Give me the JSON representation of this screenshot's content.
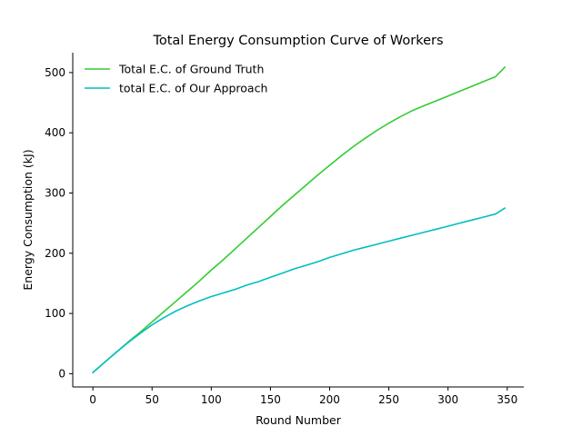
{
  "chart_data": {
    "type": "line",
    "title": "Total Energy Consumption Curve of Workers",
    "xlabel": "Round Number",
    "ylabel": "Energy Consumption (kJ)",
    "xlim": [
      -17,
      364
    ],
    "ylim": [
      -22,
      533
    ],
    "xticks": [
      0,
      50,
      100,
      150,
      200,
      250,
      300,
      350
    ],
    "yticks": [
      0,
      100,
      200,
      300,
      400,
      500
    ],
    "grid": false,
    "legend_position": "top-left",
    "series": [
      {
        "name": "Total E.C. of Ground Truth",
        "color": "#33cc33",
        "x": [
          0,
          10,
          20,
          30,
          40,
          50,
          60,
          70,
          80,
          90,
          100,
          110,
          120,
          130,
          140,
          150,
          160,
          170,
          180,
          190,
          200,
          210,
          220,
          230,
          240,
          250,
          260,
          270,
          280,
          290,
          300,
          310,
          320,
          330,
          340,
          348
        ],
        "y": [
          2,
          19,
          36,
          53,
          69,
          86,
          103,
          120,
          137,
          154,
          172,
          189,
          207,
          225,
          243,
          261,
          279,
          296,
          313,
          330,
          346,
          362,
          377,
          391,
          404,
          416,
          427,
          437,
          445,
          453,
          461,
          469,
          477,
          485,
          493,
          509
        ]
      },
      {
        "name": "total E.C. of Our Approach",
        "color": "#00bfbf",
        "x": [
          0,
          10,
          20,
          30,
          40,
          50,
          60,
          70,
          80,
          90,
          100,
          110,
          120,
          130,
          140,
          150,
          160,
          170,
          180,
          190,
          200,
          210,
          220,
          230,
          240,
          250,
          260,
          270,
          280,
          290,
          300,
          310,
          320,
          330,
          340,
          348
        ],
        "y": [
          2,
          19,
          36,
          52,
          67,
          81,
          93,
          104,
          113,
          121,
          128,
          134,
          140,
          147,
          153,
          160,
          167,
          174,
          180,
          186,
          193,
          199,
          205,
          210,
          215,
          220,
          225,
          230,
          235,
          240,
          245,
          250,
          255,
          260,
          265,
          275
        ]
      }
    ]
  }
}
